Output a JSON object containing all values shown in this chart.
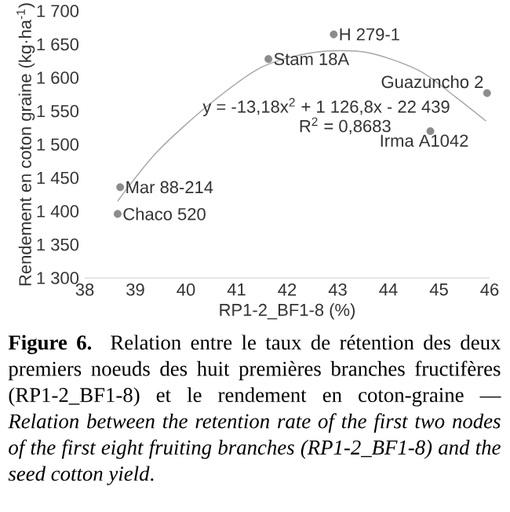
{
  "chart_data": {
    "type": "scatter",
    "xlabel": "RP1-2_BF1-8 (%)",
    "ylabel": "Rendement en coton graine (kg·ha$^{-1}$)",
    "xlim": [
      38,
      46
    ],
    "xticks": [
      38,
      39,
      40,
      41,
      42,
      43,
      44,
      45,
      46
    ],
    "ylim": [
      1300,
      1700
    ],
    "marker": "circle",
    "yticks": [
      {
        "value": 1300,
        "label": "1 300"
      },
      {
        "value": 1350,
        "label": "1 350"
      },
      {
        "value": 1400,
        "label": "1 400"
      },
      {
        "value": 1450,
        "label": "1 450"
      },
      {
        "value": 1500,
        "label": "1 500"
      },
      {
        "value": 1550,
        "label": "1 550"
      },
      {
        "value": 1600,
        "label": "1 600"
      },
      {
        "value": 1650,
        "label": "1 650"
      },
      {
        "value": 1700,
        "label": "1 700"
      }
    ],
    "series": [
      {
        "color": "#8c8c8c",
        "x": [
          38.7,
          38.65,
          41.63,
          42.92,
          45.95,
          44.83
        ],
        "values": [
          1436,
          1396,
          1628,
          1665,
          1577,
          1520
        ]
      },
      {
        "type": "line",
        "marker": "none",
        "color": "#a6a6a6",
        "x": [
          38.65,
          39.43,
          40.46,
          41.5,
          42.53,
          43.57,
          44.6,
          45.33,
          45.93
        ],
        "values": [
          1415,
          1489,
          1560,
          1616,
          1638,
          1638,
          1611,
          1571,
          1535
        ]
      }
    ],
    "annotations": [
      {
        "text": "Mar 88-214",
        "x": 38.7,
        "y": 1436
      },
      {
        "text": "Chaco 520",
        "x": 38.65,
        "y": 1396
      },
      {
        "text": "Stam 18A",
        "x": 41.63,
        "y": 1628
      },
      {
        "text": "H 279-1",
        "x": 42.92,
        "y": 1665
      },
      {
        "text": "Guazuncho 2",
        "x": 45.95,
        "y": 1577
      },
      {
        "text": "Irma A1042",
        "x": 44.83,
        "y": 1520
      },
      "y = -13,18x$^{2}$ + 1 126,8x - 22 439",
      "R$^{2}$ = 0,8683",
      "**Figure 6.** Relation entre le taux de rétention des deux premiers noeuds des huit premières branches fructifères (RP1-2_BF1-8) et le rendement en coton-graine — *Relation between the retention rate of the first two nodes of the first eight fruiting branches (RP1-2_BF1-8) and the seed cotton yield*."
    ]
  }
}
